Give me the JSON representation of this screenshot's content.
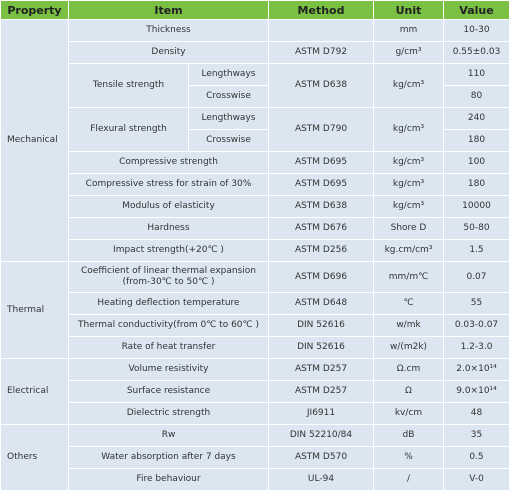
{
  "table": {
    "header": [
      "Property",
      "Item",
      "Method",
      "Unit",
      "Value"
    ],
    "groups": [
      {
        "property": "Mechanical",
        "rows": [
          {
            "item": "Thickness",
            "unit": "mm",
            "value": "10-30"
          },
          {
            "item": "Density",
            "method": "ASTM D792",
            "unit": "g/cm³",
            "value": "0.55±0.03"
          },
          {
            "item": "Tensile strength",
            "method": "ASTM D638",
            "unit": "kg/cm³",
            "parts": [
              {
                "sub": "Lengthways",
                "value": 110
              },
              {
                "sub": "Crosswise",
                "value": 80
              }
            ]
          },
          {
            "item": "Flexural strength",
            "method": "ASTM D790",
            "unit": "kg/cm³",
            "parts": [
              {
                "sub": "Lengthways",
                "value": 240
              },
              {
                "sub": "Crosswise",
                "value": 180
              }
            ]
          },
          {
            "item": "Compressive strength",
            "method": "ASTM D695",
            "unit": "kg/cm³",
            "value": 100
          },
          {
            "item": "Compressive stress for strain of 30%",
            "method": "ASTM D695",
            "unit": "kg/cm³",
            "value": 180
          },
          {
            "item": "Modulus of elasticity",
            "method": "ASTM D638",
            "unit": "kg/cm³",
            "value": 10000
          },
          {
            "item": "Hardness",
            "method": "ASTM D676",
            "unit": "Shore D",
            "value": "50-80"
          },
          {
            "item": "Impact strength(+20℃ )",
            "method": "ASTM D256",
            "unit": "kg.cm/cm³",
            "value": 1.5
          }
        ]
      },
      {
        "property": "Thermal",
        "rows": [
          {
            "item": "Coefficient of linear thermal expansion (from-30℃ to 50℃ )",
            "method": "ASTM D696",
            "unit": "mm/m℃",
            "value": 0.07
          },
          {
            "item": "Heating deflection temperature",
            "method": "ASTM D648",
            "unit": "℃",
            "value": 55
          },
          {
            "item": "Thermal  conductivity(from 0℃ to 60℃ )",
            "method": "DIN 52616",
            "unit": "w/mk",
            "value": "0.03-0.07"
          },
          {
            "item": "Rate of heat transfer",
            "method": "DIN 52616",
            "unit": "w/(m2k)",
            "value": "1.2-3.0"
          }
        ]
      },
      {
        "property": "Electrical",
        "rows": [
          {
            "item": "Volume resistivity",
            "method": "ASTM D257",
            "unit": "Ω.cm",
            "value": "2.0×10¹⁴"
          },
          {
            "item": "Surface resistance",
            "method": "ASTM D257",
            "unit": "Ω",
            "value": "9.0×10¹⁴"
          },
          {
            "item": "Dielectric strength",
            "method": "JI6911",
            "unit": "kv/cm",
            "value": 48
          }
        ]
      },
      {
        "property": "Others",
        "rows": [
          {
            "item": "Rw",
            "method": "DIN 52210/84",
            "unit": "dB",
            "value": 35
          },
          {
            "item": "Water absorption after 7 days",
            "method": "ASTM D570",
            "unit": "%",
            "value": 0.5
          },
          {
            "item": "Fire behaviour",
            "method": "UL-94",
            "unit": "/",
            "value": "V-0"
          }
        ]
      }
    ]
  }
}
